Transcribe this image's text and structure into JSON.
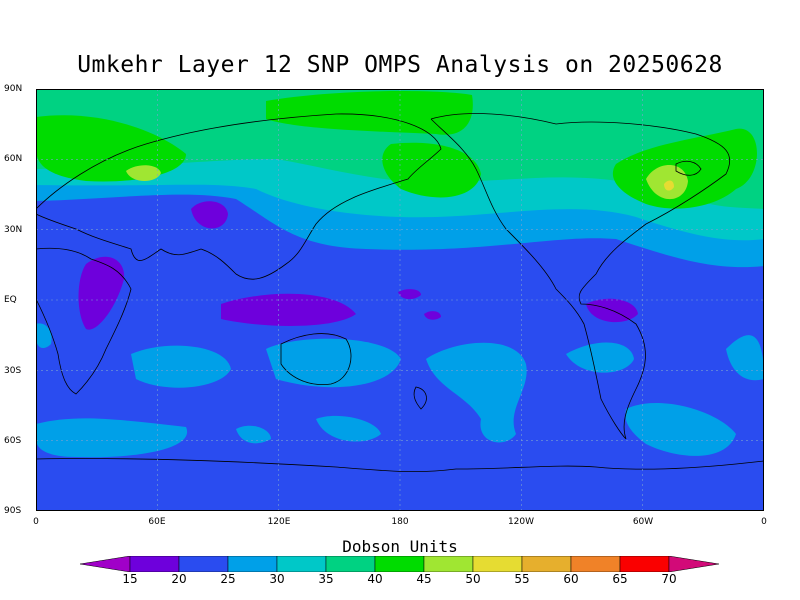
{
  "title": "Umkehr Layer 12 SNP OMPS Analysis on 20250628",
  "units_label": "Dobson Units",
  "lat_labels": [
    "90N",
    "60N",
    "30N",
    "EQ",
    "30S",
    "60S",
    "90S"
  ],
  "lon_labels": [
    "0",
    "60E",
    "120E",
    "180",
    "120W",
    "60W",
    "0"
  ],
  "colorbar": {
    "levels": [
      "15",
      "20",
      "25",
      "30",
      "35",
      "40",
      "45",
      "50",
      "55",
      "60",
      "65",
      "70"
    ],
    "colors": [
      "#a000c8",
      "#6e00dc",
      "#2a4cf0",
      "#00a0e8",
      "#00c8c8",
      "#00d282",
      "#00dc00",
      "#a0e632",
      "#e6dc32",
      "#e6af2d",
      "#f08228",
      "#fa0000",
      "#d20a78"
    ]
  },
  "map": {
    "projection": "cylindrical equidistant",
    "lon_range": [
      0,
      360
    ],
    "lat_range": [
      -90,
      90
    ],
    "grid": "dashed"
  }
}
